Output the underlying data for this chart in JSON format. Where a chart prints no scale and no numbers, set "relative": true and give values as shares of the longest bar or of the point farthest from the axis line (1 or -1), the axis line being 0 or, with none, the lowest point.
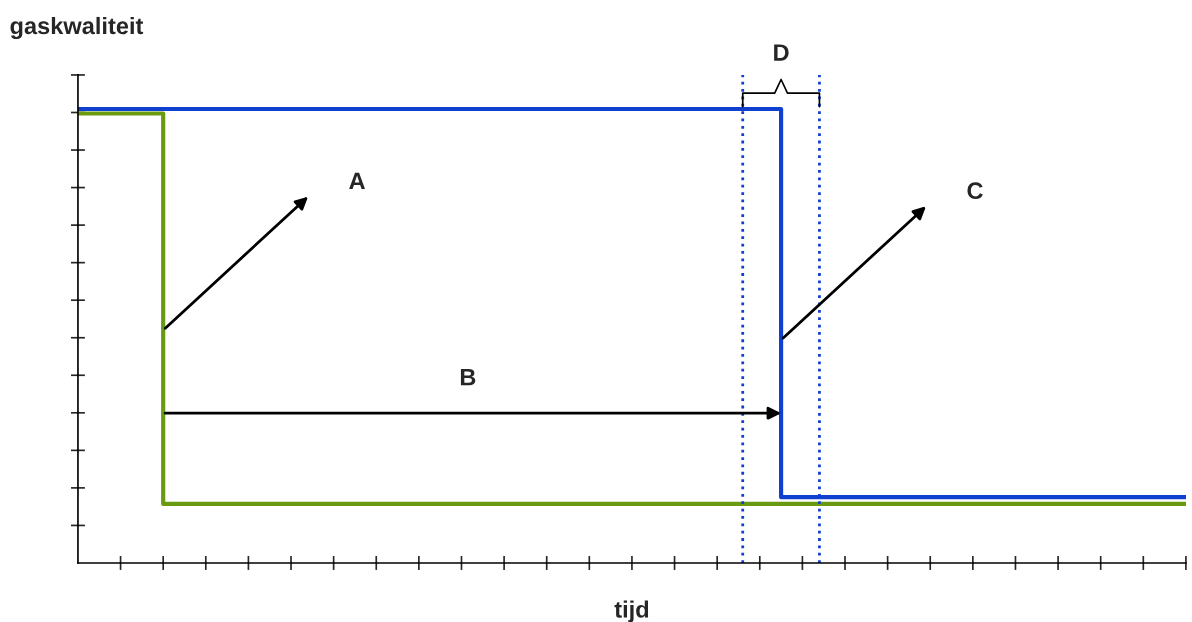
{
  "chart_data": {
    "type": "step",
    "relative": true,
    "xlabel": "tijd",
    "ylabel": "gaskwaliteit",
    "categories": [
      null,
      null,
      null,
      null,
      null,
      null,
      null,
      null,
      null,
      null,
      null,
      null,
      null,
      null,
      null,
      null,
      null,
      null,
      null,
      null,
      null,
      null,
      null,
      null,
      null,
      null,
      null,
      null,
      null,
      null,
      null,
      null,
      null,
      null,
      null,
      null,
      null,
      null,
      null,
      null,
      null,
      null,
      null,
      null,
      null,
      null,
      null,
      null,
      null,
      null,
      null,
      null,
      null
    ],
    "series": [
      {
        "color": "#1040d0",
        "values": [
          1,
          1,
          1,
          1,
          1,
          1,
          1,
          1,
          1,
          1,
          1,
          1,
          1,
          1,
          1,
          1,
          1,
          1,
          1,
          1,
          1,
          1,
          1,
          1,
          1,
          1,
          1,
          1,
          1,
          1,
          1,
          1,
          1,
          0.145,
          0.145,
          0.145,
          0.145,
          0.145,
          0.145,
          0.145,
          0.145,
          0.145,
          0.145,
          0.145,
          0.145,
          0.145,
          0.145,
          0.145,
          0.145,
          0.145,
          0.145,
          0.145,
          0.145
        ]
      },
      {
        "color": "#6a9a10",
        "values": [
          0.99,
          0.99,
          0.99,
          0.99,
          0.13,
          0.13,
          0.13,
          0.13,
          0.13,
          0.13,
          0.13,
          0.13,
          0.13,
          0.13,
          0.13,
          0.13,
          0.13,
          0.13,
          0.13,
          0.13,
          0.13,
          0.13,
          0.13,
          0.13,
          0.13,
          0.13,
          0.13,
          0.13,
          0.13,
          0.13,
          0.13,
          0.13,
          0.13,
          0.13,
          0.13,
          0.13,
          0.13,
          0.13,
          0.13,
          0.13,
          0.13,
          0.13,
          0.13,
          0.13,
          0.13,
          0.13,
          0.13,
          0.13,
          0.13,
          0.13,
          0.13,
          0.13,
          0.13
        ]
      }
    ],
    "annotations": [
      "A",
      "B",
      "C",
      "D"
    ],
    "grid": false,
    "marker": "none",
    "line_style": "solid",
    "tick_labels": false
  }
}
